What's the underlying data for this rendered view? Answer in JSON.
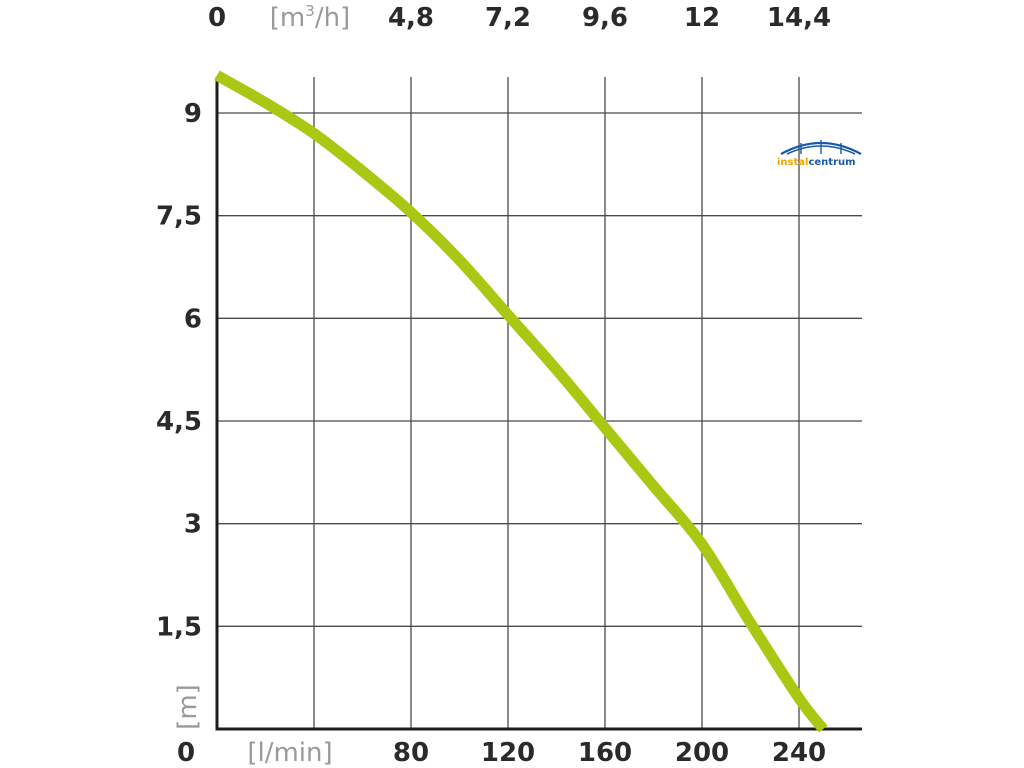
{
  "chart_data": {
    "type": "line",
    "x_bottom": {
      "unit": "[l/min]",
      "origin_label": "0",
      "tick_labels": [
        "80",
        "120",
        "160",
        "200",
        "240"
      ],
      "range": [
        0,
        260
      ]
    },
    "x_top": {
      "unit_prefix": "[m",
      "unit_sup": "3",
      "unit_suffix": "/h]",
      "origin_label": "0",
      "tick_labels": [
        "4,8",
        "7,2",
        "9,6",
        "12",
        "14,4"
      ]
    },
    "y": {
      "unit": "[m]",
      "tick_labels": [
        "1,5",
        "3",
        "4,5",
        "6",
        "7,5",
        "9"
      ],
      "tick_values": [
        1.5,
        3,
        4.5,
        6,
        7.5,
        9
      ],
      "range": [
        0,
        9.5
      ]
    },
    "grid_x_values": [
      40,
      80,
      120,
      160,
      200,
      240
    ],
    "series": [
      {
        "color": "#a8c814",
        "x": [
          0,
          20,
          40,
          60,
          80,
          100,
          120,
          140,
          160,
          180,
          200,
          220,
          240,
          250
        ],
        "y": [
          9.55,
          9.15,
          8.7,
          8.15,
          7.55,
          6.85,
          6.05,
          5.25,
          4.4,
          3.55,
          2.7,
          1.55,
          0.45,
          0.0
        ]
      }
    ],
    "grid": true
  },
  "logo": {
    "text_part1": "instal",
    "text_part2": "centrum",
    "color1": "#1a5aa8",
    "color2": "#f0a500"
  }
}
